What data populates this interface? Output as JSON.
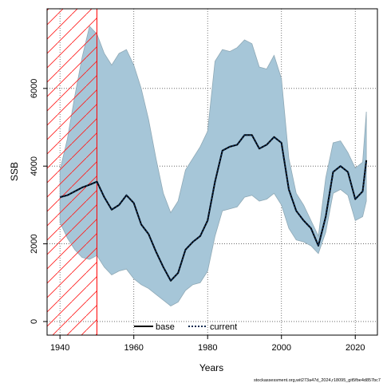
{
  "chart_data": {
    "type": "line",
    "title": "",
    "xlabel": "Years",
    "ylabel": "SSB",
    "xlim": [
      1936.5,
      2026
    ],
    "ylim": [
      -350,
      8050
    ],
    "x_ticks": [
      1940,
      1960,
      1980,
      2000,
      2020
    ],
    "y_ticks": [
      0,
      2000,
      4000,
      6000
    ],
    "grid": true,
    "legend_position": "bottom-center",
    "shaded_region": {
      "x_start": 1936.5,
      "x_end": 1950,
      "fill": "hatched",
      "color": "#ff0000"
    },
    "ribbon": {
      "color": "#a6c6d8",
      "x": [
        1940,
        1942,
        1944,
        1946,
        1948,
        1950,
        1952,
        1954,
        1956,
        1958,
        1960,
        1962,
        1964,
        1966,
        1968,
        1970,
        1972,
        1974,
        1976,
        1978,
        1980,
        1982,
        1984,
        1986,
        1988,
        1990,
        1992,
        1994,
        1996,
        1998,
        2000,
        2002,
        2004,
        2006,
        2008,
        2010,
        2012,
        2014,
        2016,
        2018,
        2020,
        2022,
        2023
      ],
      "lower": [
        2550,
        2150,
        1850,
        1650,
        1600,
        1700,
        1400,
        1200,
        1300,
        1350,
        1100,
        950,
        850,
        700,
        550,
        400,
        500,
        800,
        950,
        1000,
        1300,
        2200,
        2850,
        2900,
        2950,
        3200,
        3250,
        3100,
        3150,
        3300,
        3000,
        2400,
        2100,
        2050,
        1950,
        1750,
        2300,
        3300,
        3400,
        3250,
        2600,
        2700,
        3100
      ],
      "upper": [
        3900,
        4700,
        5800,
        6800,
        7600,
        7400,
        6900,
        6600,
        6900,
        7000,
        6600,
        6000,
        5200,
        4200,
        3300,
        2800,
        3100,
        3900,
        4200,
        4500,
        4900,
        6700,
        7000,
        6950,
        7050,
        7250,
        7150,
        6550,
        6500,
        6850,
        6250,
        4200,
        3300,
        3000,
        2600,
        2200,
        3700,
        4600,
        4650,
        4350,
        3950,
        4100,
        5400
      ]
    },
    "series": [
      {
        "name": "base",
        "style": "solid",
        "color": "#000000",
        "x": [
          1940,
          1942,
          1944,
          1946,
          1948,
          1950,
          1952,
          1954,
          1956,
          1958,
          1960,
          1962,
          1964,
          1966,
          1968,
          1970,
          1972,
          1974,
          1976,
          1978,
          1980,
          1982,
          1984,
          1986,
          1988,
          1990,
          1992,
          1994,
          1996,
          1998,
          2000,
          2002,
          2004,
          2006,
          2008,
          2010,
          2012,
          2014,
          2016,
          2018,
          2020,
          2022,
          2023
        ],
        "y": [
          3200,
          3250,
          3350,
          3450,
          3520,
          3600,
          3200,
          2880,
          3000,
          3250,
          3050,
          2500,
          2250,
          1800,
          1400,
          1050,
          1250,
          1850,
          2050,
          2200,
          2600,
          3600,
          4400,
          4500,
          4550,
          4800,
          4800,
          4450,
          4550,
          4750,
          4600,
          3400,
          2850,
          2600,
          2400,
          1950,
          2700,
          3850,
          4000,
          3850,
          3150,
          3350,
          4150
        ]
      },
      {
        "name": "current",
        "style": "dotted",
        "color": "#0b2a50",
        "x": [
          1940,
          1942,
          1944,
          1946,
          1948,
          1950,
          1952,
          1954,
          1956,
          1958,
          1960,
          1962,
          1964,
          1966,
          1968,
          1970,
          1972,
          1974,
          1976,
          1978,
          1980,
          1982,
          1984,
          1986,
          1988,
          1990,
          1992,
          1994,
          1996,
          1998,
          2000,
          2002,
          2004,
          2006,
          2008,
          2010,
          2012,
          2014,
          2016,
          2018,
          2020,
          2022,
          2023
        ],
        "y": [
          3200,
          3250,
          3350,
          3450,
          3520,
          3600,
          3200,
          2880,
          3000,
          3250,
          3050,
          2500,
          2250,
          1800,
          1400,
          1050,
          1250,
          1850,
          2050,
          2200,
          2600,
          3600,
          4400,
          4500,
          4550,
          4800,
          4800,
          4450,
          4550,
          4750,
          4600,
          3400,
          2850,
          2600,
          2400,
          1950,
          2700,
          3850,
          4000,
          3850,
          3150,
          3350,
          4150
        ]
      }
    ]
  },
  "footer": "stockassessment.org,wit273a47d_2024,r18095_git5fbe4d857bc7"
}
